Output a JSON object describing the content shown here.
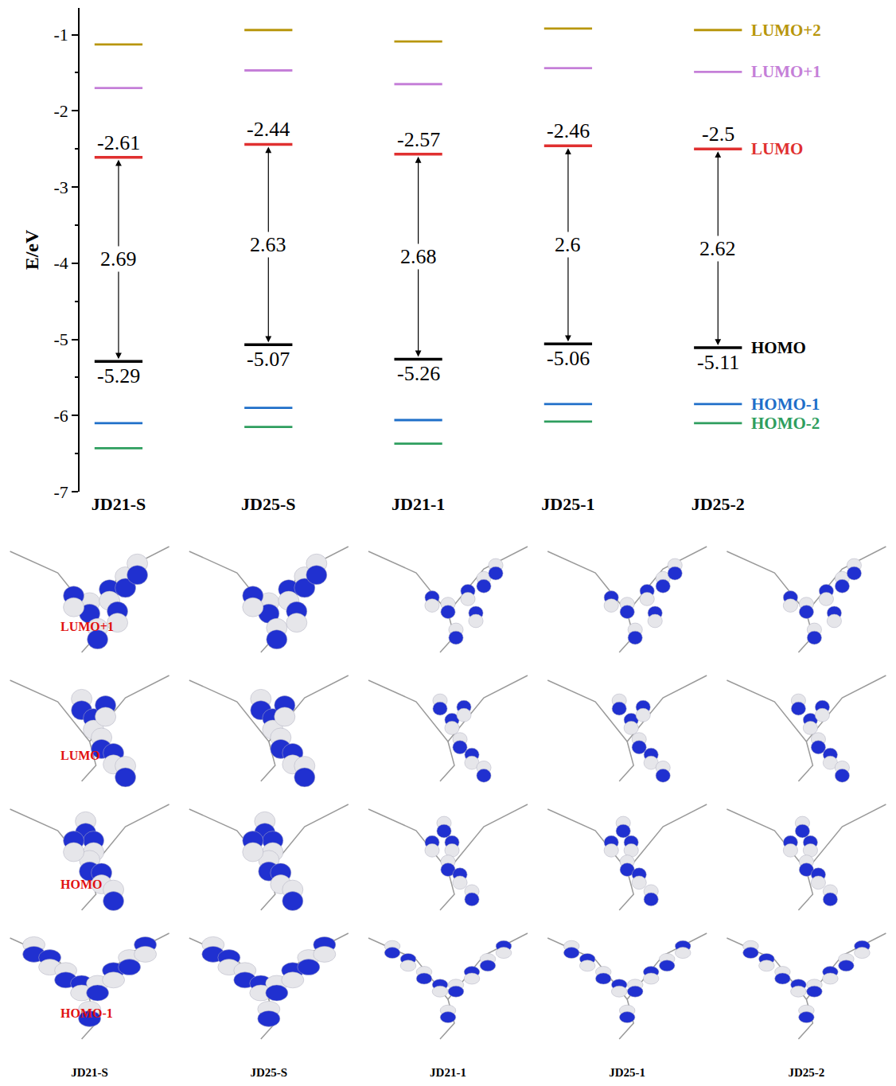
{
  "chart_data": {
    "type": "energy_level",
    "y_label": "E/eV",
    "categories": [
      "JD21-S",
      "JD25-S",
      "JD21-1",
      "JD25-1",
      "JD25-2"
    ],
    "ylim": [
      -7,
      -0.65
    ],
    "yticks": [
      -7,
      -6,
      -5,
      -4,
      -3,
      -2,
      -1
    ],
    "legend": "right",
    "series": [
      {
        "name": "LUMO+2",
        "color": "#b8960c",
        "values": [
          -1.13,
          -0.94,
          -1.09,
          -0.92,
          -0.94
        ]
      },
      {
        "name": "LUMO+1",
        "color": "#c57fd8",
        "values": [
          -1.7,
          -1.47,
          -1.65,
          -1.44,
          -1.49
        ]
      },
      {
        "name": "LUMO",
        "color": "#e03030",
        "values": [
          -2.61,
          -2.44,
          -2.57,
          -2.46,
          -2.5
        ],
        "data_labels": true
      },
      {
        "name": "HOMO",
        "color": "#000000",
        "values": [
          -5.29,
          -5.07,
          -5.26,
          -5.06,
          -5.11
        ],
        "data_labels": true
      },
      {
        "name": "HOMO-1",
        "color": "#1f6fc9",
        "values": [
          -6.1,
          -5.9,
          -6.06,
          -5.85,
          -5.85
        ]
      },
      {
        "name": "HOMO-2",
        "color": "#2e9e5e",
        "values": [
          -6.43,
          -6.15,
          -6.37,
          -6.08,
          -6.1
        ]
      }
    ],
    "gaps": {
      "from": "HOMO",
      "to": "LUMO",
      "values": [
        2.69,
        2.63,
        2.68,
        2.6,
        2.62
      ]
    }
  },
  "orbital_panels": {
    "rows": [
      "LUMO+1",
      "LUMO",
      "HOMO",
      "HOMO-1"
    ],
    "row_label_color": "#e01010",
    "columns": [
      "JD21-S",
      "JD25-S",
      "JD21-1",
      "JD25-1",
      "JD25-2"
    ]
  }
}
